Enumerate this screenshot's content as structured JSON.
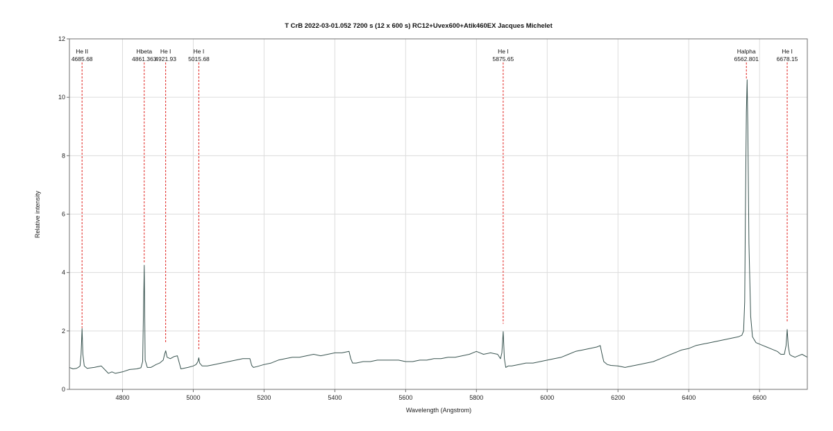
{
  "chart_data": {
    "type": "line",
    "title": "T CrB   2022-03-01.052   7200 s (12 x 600 s)  RC12+Uvex600+Atik460EX  Jacques Michelet",
    "xlabel": "Wavelength (Angstrom)",
    "ylabel": "Relative intensity",
    "xlim": [
      4650,
      6735
    ],
    "ylim": [
      0,
      12
    ],
    "xticks": [
      4800,
      5000,
      5200,
      5400,
      5600,
      5800,
      6000,
      6200,
      6400,
      6600
    ],
    "yticks": [
      0,
      2,
      4,
      6,
      8,
      10,
      12
    ],
    "grid": true,
    "colors": {
      "spectrum": "#37524e",
      "marker": "#e0201c",
      "grid": "#dcdcdc",
      "frame": "#6e6e6e"
    },
    "line_markers": [
      {
        "element": "He II",
        "wavelength": 4685.68,
        "wavelength_label": "4685.68",
        "line_bottom": 2.1
      },
      {
        "element": "Hbeta",
        "wavelength": 4861.363,
        "wavelength_label": "4861.363",
        "line_bottom": 4.3
      },
      {
        "element": "He I",
        "wavelength": 4921.93,
        "wavelength_label": "4921.93",
        "line_bottom": 1.6
      },
      {
        "element": "He I",
        "wavelength": 5015.68,
        "wavelength_label": "5015.68",
        "line_bottom": 1.35
      },
      {
        "element": "He I",
        "wavelength": 5875.65,
        "wavelength_label": "5875.65",
        "line_bottom": 2.25
      },
      {
        "element": "Halpha",
        "wavelength": 6562.801,
        "wavelength_label": "6562.801",
        "line_bottom": 10.6
      },
      {
        "element": "He I",
        "wavelength": 6678.15,
        "wavelength_label": "6678.15",
        "line_bottom": 2.3
      }
    ],
    "series": [
      {
        "x": [
          4650,
          4660,
          4670,
          4675,
          4680,
          4683,
          4685.7,
          4688,
          4692,
          4700,
          4720,
          4740,
          4760,
          4770,
          4780,
          4800,
          4820,
          4840,
          4852,
          4857,
          4861.4,
          4864,
          4870,
          4880,
          4895,
          4905,
          4915,
          4919,
          4922,
          4926,
          4935,
          4945,
          4955,
          4965,
          4985,
          5000,
          5008,
          5013,
          5015.7,
          5018,
          5025,
          5040,
          5060,
          5080,
          5100,
          5120,
          5140,
          5160,
          5165,
          5170,
          5180,
          5200,
          5220,
          5240,
          5260,
          5280,
          5300,
          5320,
          5340,
          5360,
          5380,
          5400,
          5420,
          5440,
          5445,
          5450,
          5460,
          5480,
          5500,
          5520,
          5540,
          5560,
          5580,
          5600,
          5620,
          5640,
          5660,
          5680,
          5700,
          5720,
          5740,
          5760,
          5780,
          5800,
          5820,
          5840,
          5860,
          5868,
          5872,
          5875.6,
          5879,
          5883,
          5890,
          5900,
          5920,
          5940,
          5960,
          5980,
          6000,
          6020,
          6040,
          6060,
          6080,
          6100,
          6120,
          6140,
          6150,
          6155,
          6160,
          6170,
          6180,
          6200,
          6220,
          6240,
          6260,
          6280,
          6300,
          6320,
          6340,
          6360,
          6380,
          6400,
          6420,
          6440,
          6460,
          6480,
          6500,
          6520,
          6540,
          6550,
          6555,
          6558,
          6560,
          6562.8,
          6565,
          6567,
          6570,
          6575,
          6580,
          6590,
          6600,
          6610,
          6620,
          6630,
          6640,
          6650,
          6660,
          6670,
          6675,
          6678.2,
          6681,
          6685,
          6690,
          6700,
          6710,
          6720,
          6735
        ],
        "y": [
          0.75,
          0.7,
          0.72,
          0.75,
          0.8,
          1.2,
          2.08,
          1.2,
          0.8,
          0.72,
          0.75,
          0.8,
          0.55,
          0.6,
          0.55,
          0.6,
          0.68,
          0.7,
          0.74,
          0.95,
          4.25,
          1.0,
          0.75,
          0.75,
          0.85,
          0.9,
          1.0,
          1.2,
          1.32,
          1.1,
          1.05,
          1.12,
          1.15,
          0.7,
          0.75,
          0.8,
          0.85,
          0.95,
          1.08,
          0.9,
          0.8,
          0.8,
          0.85,
          0.9,
          0.95,
          1.0,
          1.05,
          1.05,
          0.82,
          0.75,
          0.78,
          0.85,
          0.9,
          1.0,
          1.05,
          1.1,
          1.1,
          1.15,
          1.2,
          1.15,
          1.2,
          1.25,
          1.25,
          1.3,
          1.05,
          0.9,
          0.9,
          0.95,
          0.95,
          1.0,
          1.0,
          1.0,
          1.0,
          0.95,
          0.95,
          1.0,
          1.0,
          1.05,
          1.05,
          1.1,
          1.1,
          1.15,
          1.2,
          1.3,
          1.2,
          1.25,
          1.2,
          1.05,
          1.25,
          1.98,
          1.05,
          0.75,
          0.8,
          0.8,
          0.85,
          0.9,
          0.9,
          0.95,
          1.0,
          1.05,
          1.1,
          1.2,
          1.3,
          1.35,
          1.4,
          1.45,
          1.5,
          1.2,
          0.95,
          0.85,
          0.82,
          0.8,
          0.75,
          0.8,
          0.85,
          0.9,
          0.95,
          1.05,
          1.15,
          1.25,
          1.35,
          1.4,
          1.5,
          1.55,
          1.6,
          1.65,
          1.7,
          1.75,
          1.8,
          1.85,
          2.0,
          3.0,
          6.0,
          9.5,
          10.6,
          9.0,
          5.0,
          2.5,
          1.8,
          1.6,
          1.55,
          1.5,
          1.45,
          1.4,
          1.35,
          1.3,
          1.2,
          1.2,
          1.5,
          2.05,
          1.5,
          1.2,
          1.15,
          1.1,
          1.15,
          1.2,
          1.1
        ]
      }
    ]
  }
}
